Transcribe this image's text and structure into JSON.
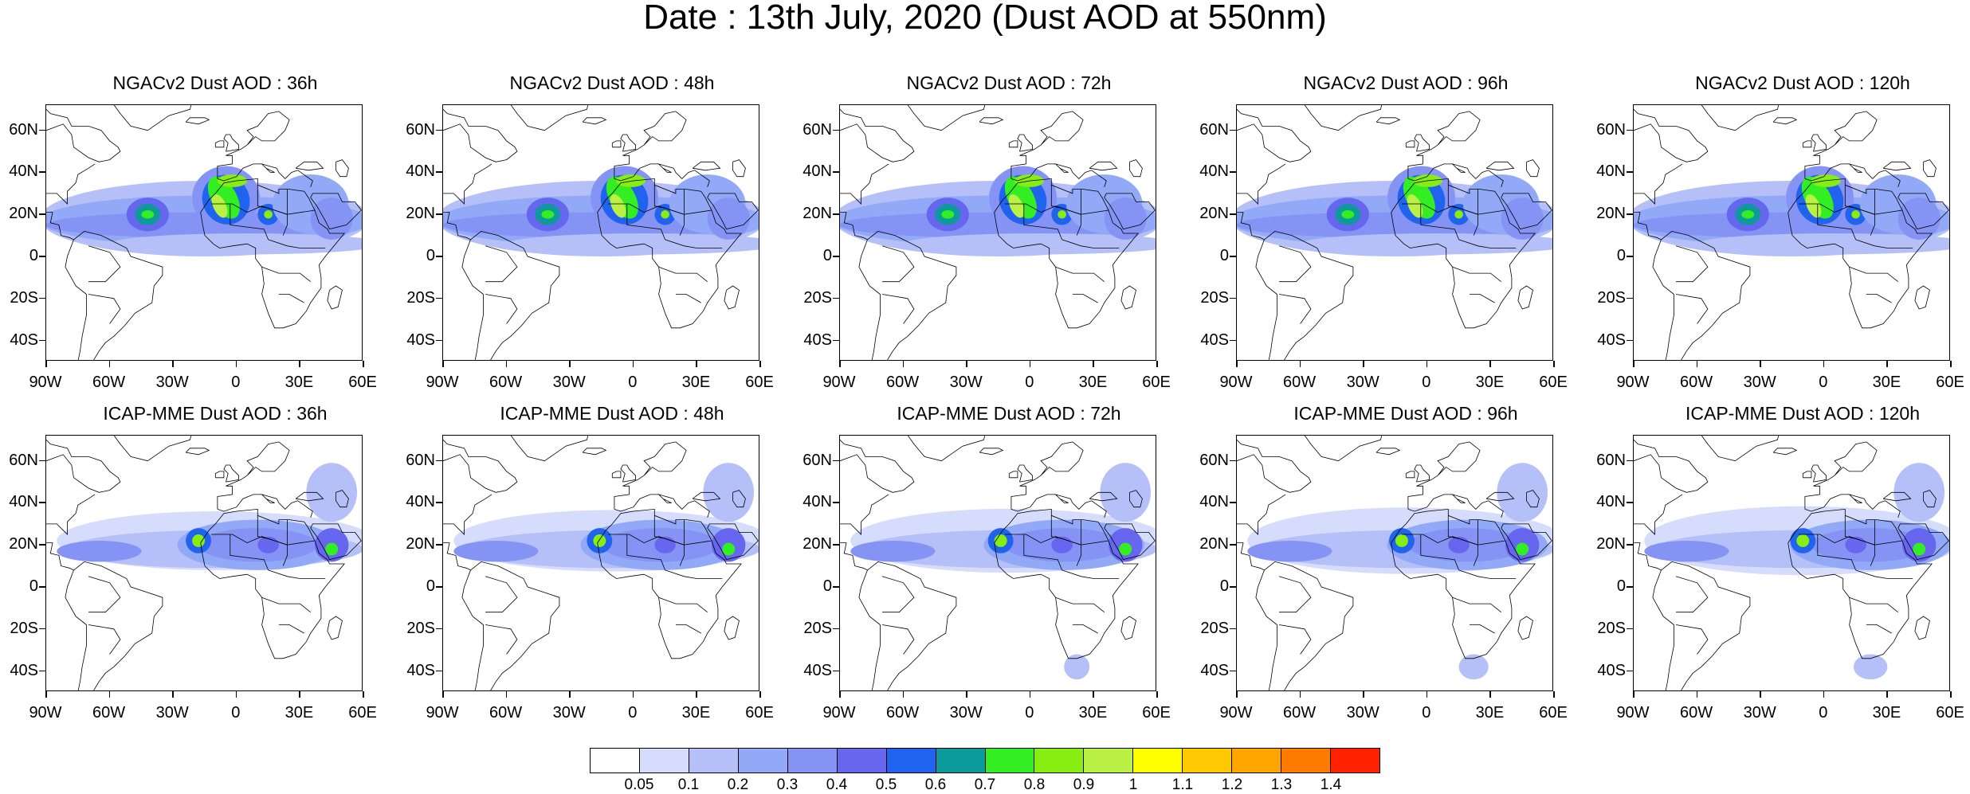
{
  "title": "Date : 13th July, 2020 (Dust AOD at 550nm)",
  "lat_labels": [
    "60N",
    "40N",
    "20N",
    "0",
    "20S",
    "40S"
  ],
  "lon_labels": [
    "90W",
    "60W",
    "30W",
    "0",
    "30E",
    "60E"
  ],
  "panels": [
    {
      "title": "NGACv2 Dust AOD : 36h",
      "model": "NGACv2",
      "lead": "36h"
    },
    {
      "title": "NGACv2 Dust AOD : 48h",
      "model": "NGACv2",
      "lead": "48h"
    },
    {
      "title": "NGACv2 Dust AOD : 72h",
      "model": "NGACv2",
      "lead": "72h"
    },
    {
      "title": "NGACv2 Dust AOD : 96h",
      "model": "NGACv2",
      "lead": "96h"
    },
    {
      "title": "NGACv2 Dust AOD : 120h",
      "model": "NGACv2",
      "lead": "120h"
    },
    {
      "title": "ICAP-MME Dust AOD : 36h",
      "model": "ICAP-MME",
      "lead": "36h"
    },
    {
      "title": "ICAP-MME Dust AOD : 48h",
      "model": "ICAP-MME",
      "lead": "48h"
    },
    {
      "title": "ICAP-MME Dust AOD : 72h",
      "model": "ICAP-MME",
      "lead": "72h"
    },
    {
      "title": "ICAP-MME Dust AOD : 96h",
      "model": "ICAP-MME",
      "lead": "96h"
    },
    {
      "title": "ICAP-MME Dust AOD : 120h",
      "model": "ICAP-MME",
      "lead": "120h"
    }
  ],
  "colorbar": {
    "labels": [
      "0.05",
      "0.1",
      "0.2",
      "0.3",
      "0.4",
      "0.5",
      "0.6",
      "0.7",
      "0.8",
      "0.9",
      "1",
      "1.1",
      "1.2",
      "1.3",
      "1.4"
    ],
    "colors": [
      "#ffffff",
      "#d6dcfb",
      "#b4c0f7",
      "#91a9f7",
      "#8593f5",
      "#6666ee",
      "#1f63ee",
      "#0d9a9a",
      "#33ee22",
      "#88ee11",
      "#bbf044",
      "#ffff00",
      "#ffc800",
      "#ffa500",
      "#ff7b00",
      "#ff2200"
    ]
  },
  "map_extent": {
    "lon": [
      -90,
      60
    ],
    "lat": [
      -50,
      72
    ]
  }
}
